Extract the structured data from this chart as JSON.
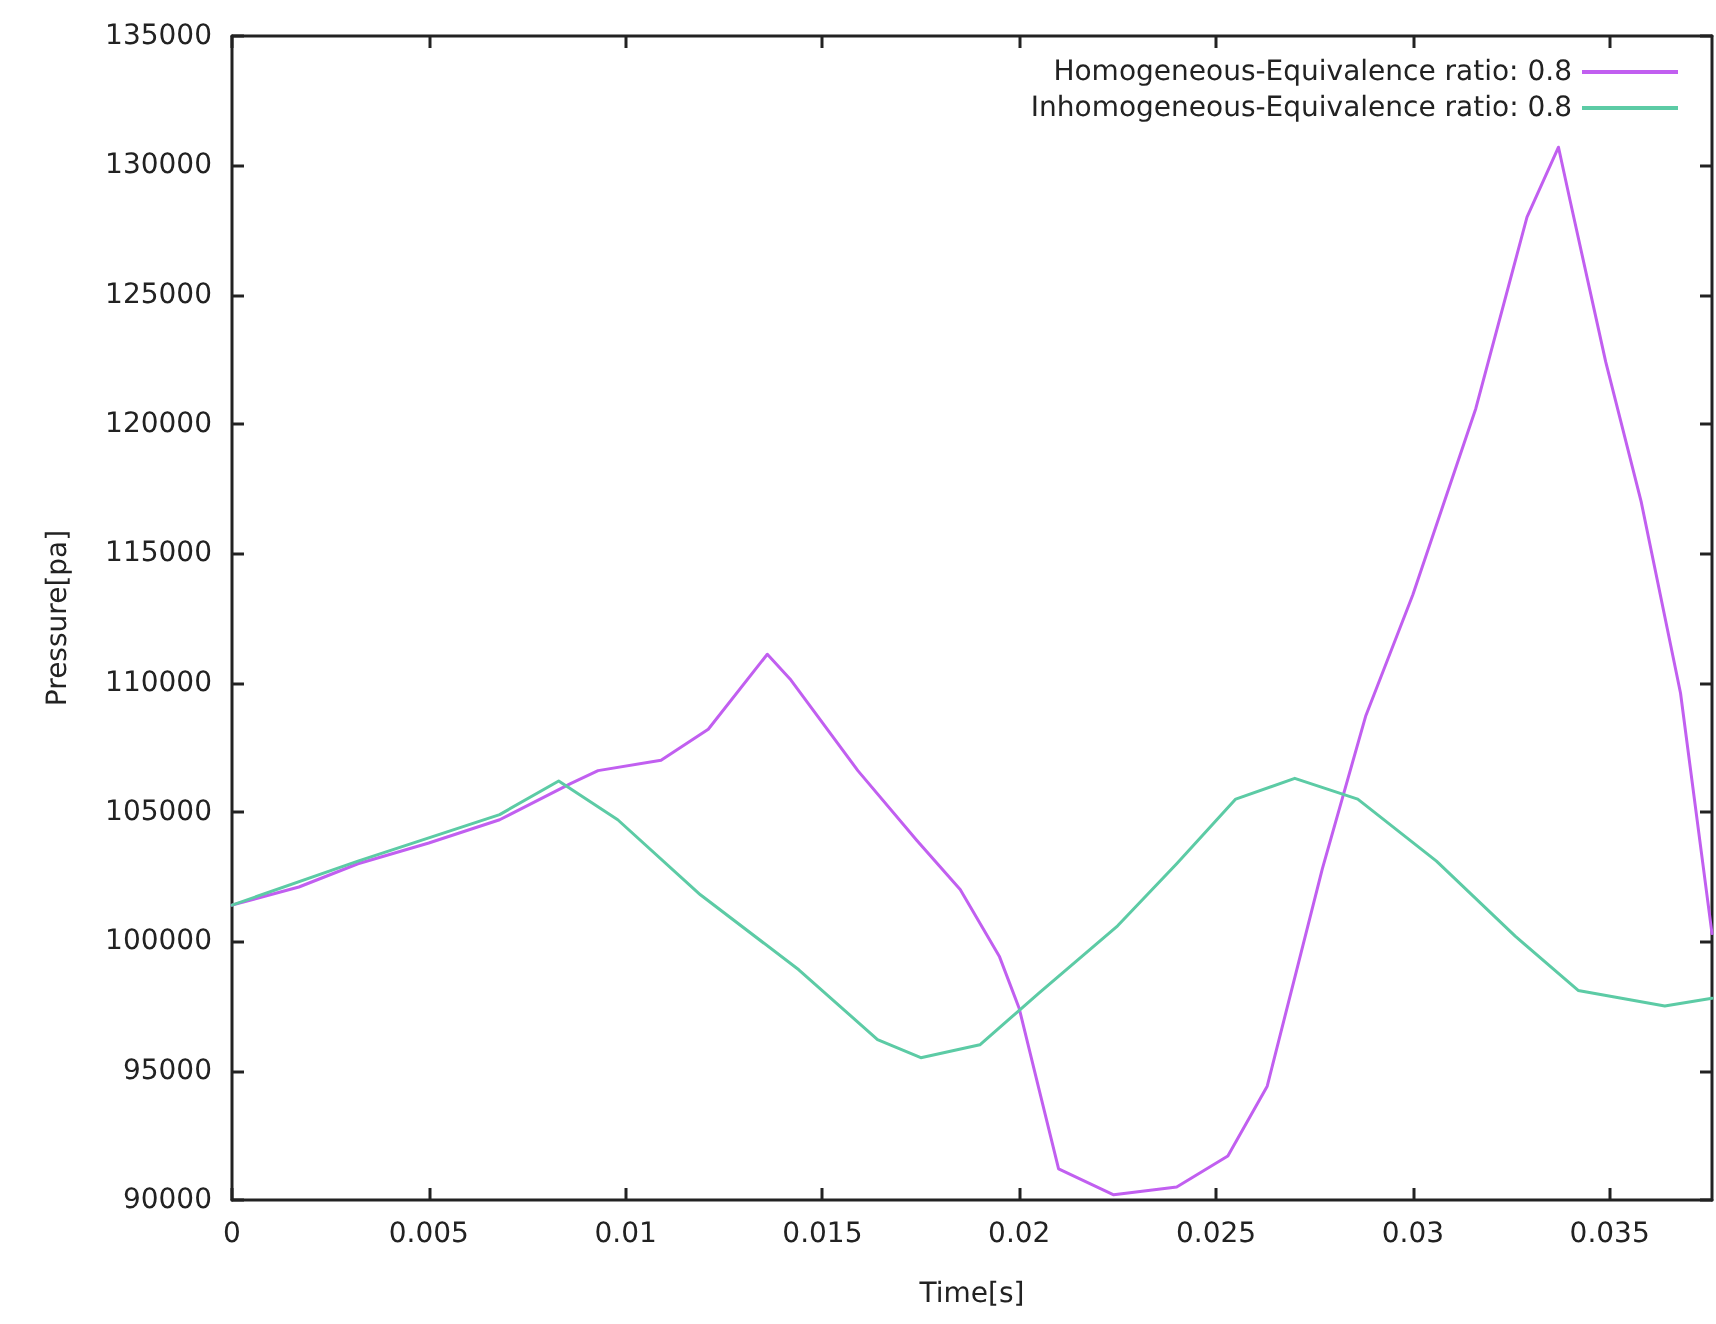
{
  "chart_data": {
    "type": "line",
    "xlabel": "Time[s]",
    "ylabel": "Pressure[pa]",
    "xlim": [
      0,
      0.0376
    ],
    "ylim": [
      90000,
      135000
    ],
    "xticks": [
      0,
      0.005,
      0.01,
      0.015,
      0.02,
      0.025,
      0.03,
      0.035
    ],
    "yticks": [
      90000,
      95000,
      100000,
      105000,
      110000,
      115000,
      120000,
      125000,
      130000,
      135000
    ],
    "grid": false,
    "legend": "top right",
    "marker": "none",
    "line_style": "solid",
    "series": [
      {
        "name": "Homogeneous-Equivalence ratio: 0.8",
        "color": "#c15ff0",
        "x": [
          0,
          0.0017,
          0.0032,
          0.005,
          0.0068,
          0.0086,
          0.0093,
          0.0109,
          0.0121,
          0.0136,
          0.0142,
          0.0159,
          0.0174,
          0.0185,
          0.0195,
          0.02,
          0.0205,
          0.021,
          0.0224,
          0.024,
          0.0253,
          0.0263,
          0.0271,
          0.0277,
          0.0288,
          0.03,
          0.0316,
          0.0329,
          0.0337,
          0.034,
          0.0349,
          0.0358,
          0.0368,
          0.0376
        ],
        "values": [
          101400,
          102100,
          103000,
          103800,
          104700,
          106100,
          106600,
          107000,
          108200,
          111100,
          110100,
          106600,
          103900,
          102000,
          99400,
          97400,
          94300,
          91200,
          90200,
          90500,
          91700,
          94400,
          99200,
          102800,
          108700,
          113400,
          120600,
          128000,
          130700,
          128600,
          122400,
          117000,
          109600,
          100300
        ]
      },
      {
        "name": "Inhomogeneous-Equivalence ratio: 0.8",
        "color": "#5ccba5",
        "x": [
          0,
          0.0032,
          0.0068,
          0.0083,
          0.0098,
          0.0119,
          0.0144,
          0.0164,
          0.0175,
          0.019,
          0.0205,
          0.0225,
          0.024,
          0.0255,
          0.027,
          0.0286,
          0.0306,
          0.0326,
          0.0342,
          0.0364,
          0.0376
        ],
        "values": [
          101400,
          103100,
          104900,
          106200,
          104700,
          101800,
          98900,
          96200,
          95500,
          96000,
          98000,
          100600,
          103000,
          105500,
          106300,
          105500,
          103100,
          100200,
          98100,
          97500,
          97800
        ]
      }
    ]
  }
}
